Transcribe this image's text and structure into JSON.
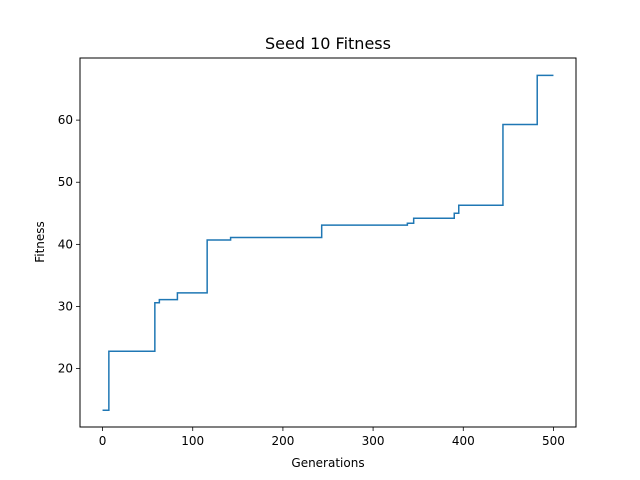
{
  "chart_data": {
    "type": "line",
    "title": "Seed 10 Fitness",
    "xlabel": "Generations",
    "ylabel": "Fitness",
    "xlim": [
      -25,
      525
    ],
    "ylim": [
      10.6,
      70
    ],
    "xticks": [
      0,
      100,
      200,
      300,
      400,
      500
    ],
    "yticks": [
      20,
      30,
      40,
      50,
      60
    ],
    "grid": false,
    "legend": "none",
    "color": "#1f77b4",
    "step": true,
    "x": [
      0,
      7,
      58,
      63,
      83,
      116,
      142,
      243,
      338,
      345,
      390,
      395,
      444,
      482,
      500
    ],
    "y": [
      13.3,
      22.8,
      30.6,
      31.1,
      32.2,
      40.7,
      41.1,
      43.1,
      43.4,
      44.2,
      45.0,
      46.3,
      59.3,
      67.2,
      67.2
    ]
  }
}
